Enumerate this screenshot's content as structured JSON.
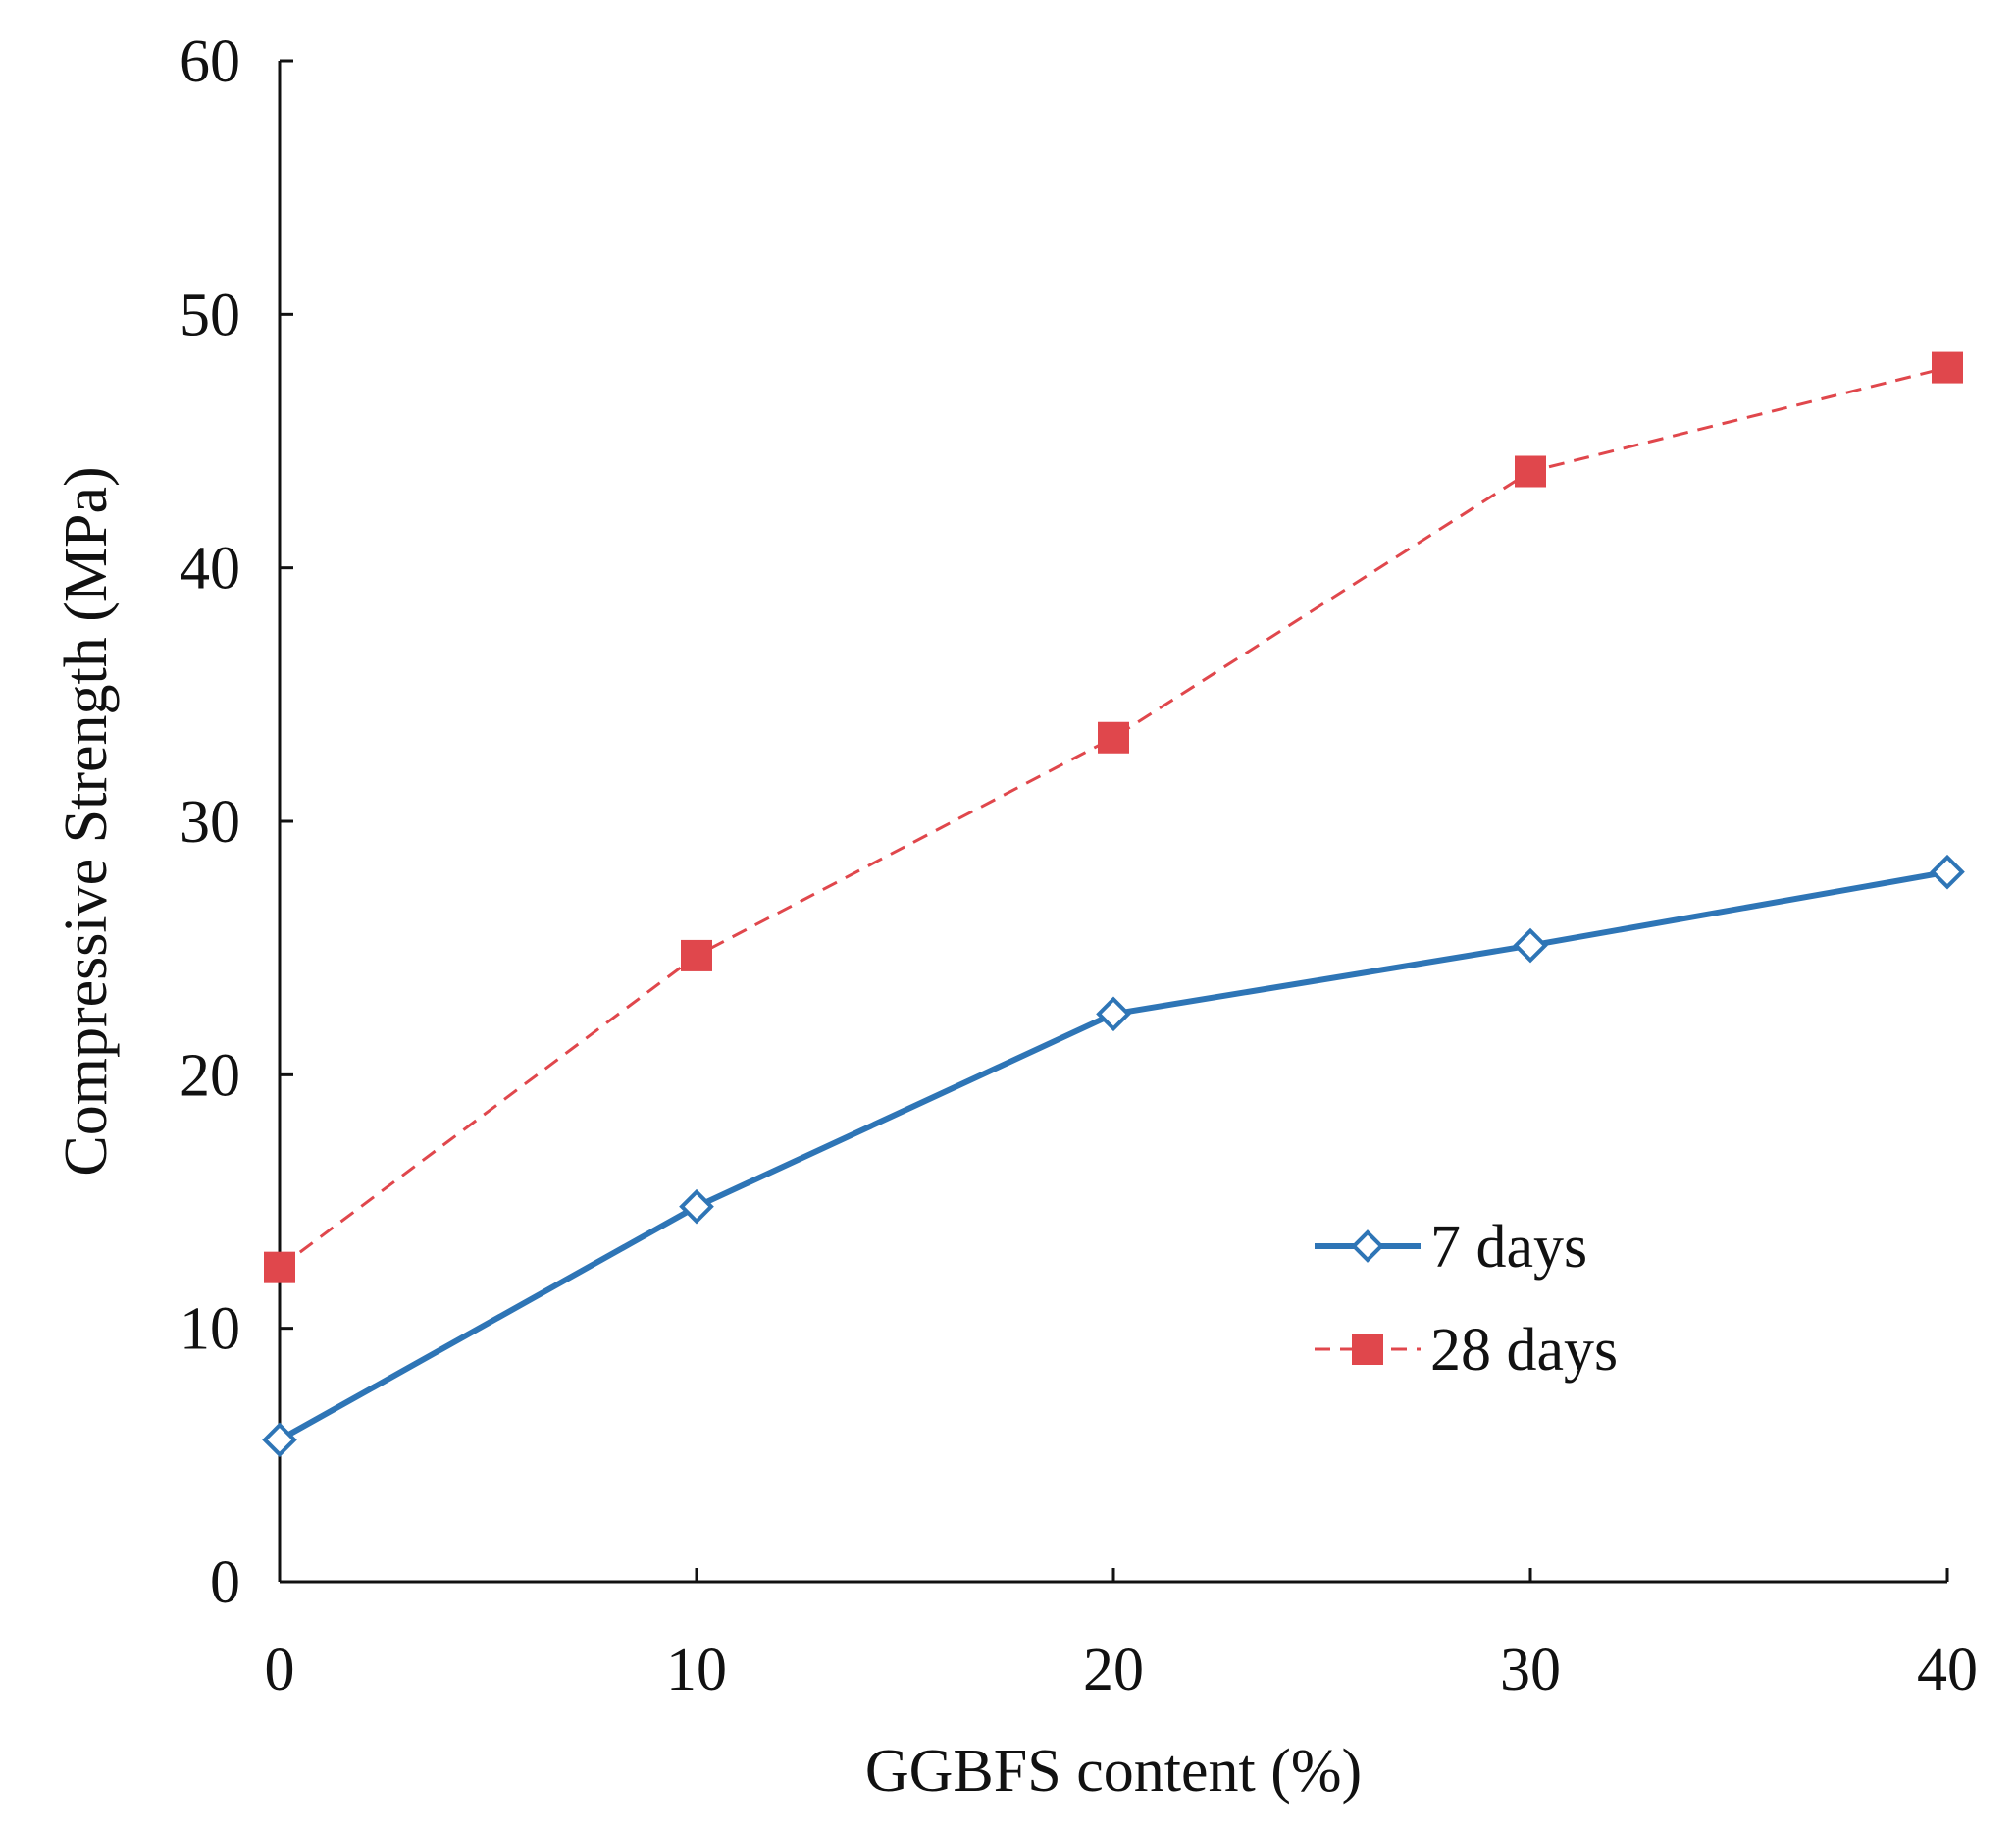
{
  "chart_data": {
    "type": "line",
    "title": "",
    "xlabel": "GGBFS content (%)",
    "ylabel": "Compressive Strength  (MPa)",
    "x": [
      0,
      10,
      20,
      30,
      40
    ],
    "xlim": [
      0,
      40
    ],
    "ylim": [
      0,
      60
    ],
    "xticks": [
      0,
      10,
      20,
      30,
      40
    ],
    "yticks": [
      0,
      10,
      20,
      30,
      40,
      50,
      60
    ],
    "grid": false,
    "legend_position": "center-right",
    "series": [
      {
        "name": "7 days",
        "values": [
          5.6,
          14.8,
          22.4,
          25.1,
          28.0
        ],
        "color": "#2e75b6",
        "line_style": "solid",
        "marker": "open-diamond"
      },
      {
        "name": "28 days",
        "values": [
          12.4,
          24.7,
          33.3,
          43.8,
          47.9
        ],
        "color": "#e0474c",
        "line_style": "dashed",
        "marker": "filled-square"
      }
    ]
  }
}
